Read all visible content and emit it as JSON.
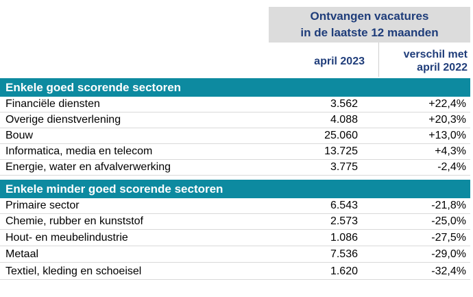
{
  "header": {
    "title_line1": "Ontvangen vacatures",
    "title_line2": "in de laatste 12 maanden",
    "col1": "april 2023",
    "col2_line1": "verschil met",
    "col2_line2": "april 2022"
  },
  "sections": [
    {
      "title": "Enkele goed scorende sectoren",
      "rows": [
        {
          "label": "Financiële diensten",
          "value": "3.562",
          "diff": "+22,4%"
        },
        {
          "label": "Overige dienstverlening",
          "value": "4.088",
          "diff": "+20,3%"
        },
        {
          "label": "Bouw",
          "value": "25.060",
          "diff": "+13,0%"
        },
        {
          "label": "Informatica, media en telecom",
          "value": "13.725",
          "diff": "+4,3%"
        },
        {
          "label": "Energie, water en afvalverwerking",
          "value": "3.775",
          "diff": "-2,4%"
        }
      ]
    },
    {
      "title": "Enkele minder goed scorende sectoren",
      "rows": [
        {
          "label": "Primaire sector",
          "value": "6.543",
          "diff": "-21,8%"
        },
        {
          "label": "Chemie, rubber en kunststof",
          "value": "2.573",
          "diff": "-25,0%"
        },
        {
          "label": "Hout- en meubelindustrie",
          "value": "1.086",
          "diff": "-27,5%"
        },
        {
          "label": "Metaal",
          "value": "7.536",
          "diff": "-29,0%"
        },
        {
          "label": "Textiel, kleding en schoeisel",
          "value": "1.620",
          "diff": "-32,4%"
        }
      ]
    }
  ],
  "colors": {
    "section_bg": "#0d8aa0",
    "header_text": "#1f3d7a",
    "header_bg": "#dcdcdc"
  }
}
